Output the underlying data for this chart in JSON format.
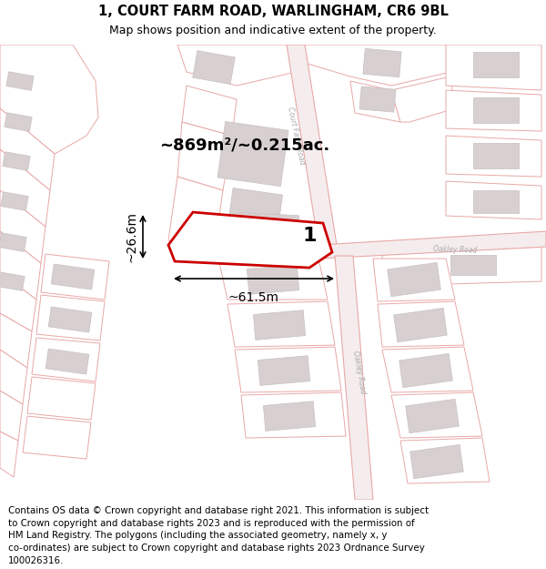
{
  "title_line1": "1, COURT FARM ROAD, WARLINGHAM, CR6 9BL",
  "title_line2": "Map shows position and indicative extent of the property.",
  "area_label": "~869m²/~0.215ac.",
  "width_label": "~61.5m",
  "height_label": "~26.6m",
  "plot_number": "1",
  "map_bg": "#faf8f8",
  "road_color": "#e8a8a8",
  "road_fill": "#f5eded",
  "building_color": "#c8c0c0",
  "building_fill": "#d8d0d0",
  "highlight_color": "#cc0000",
  "footer_lines": [
    "Contains OS data © Crown copyright and database right 2021. This information is subject",
    "to Crown copyright and database rights 2023 and is reproduced with the permission of",
    "HM Land Registry. The polygons (including the associated geometry, namely x, y",
    "co-ordinates) are subject to Crown copyright and database rights 2023 Ordnance Survey",
    "100026316."
  ],
  "title_fontsize": 10.5,
  "subtitle_fontsize": 9,
  "footer_fontsize": 7.5
}
